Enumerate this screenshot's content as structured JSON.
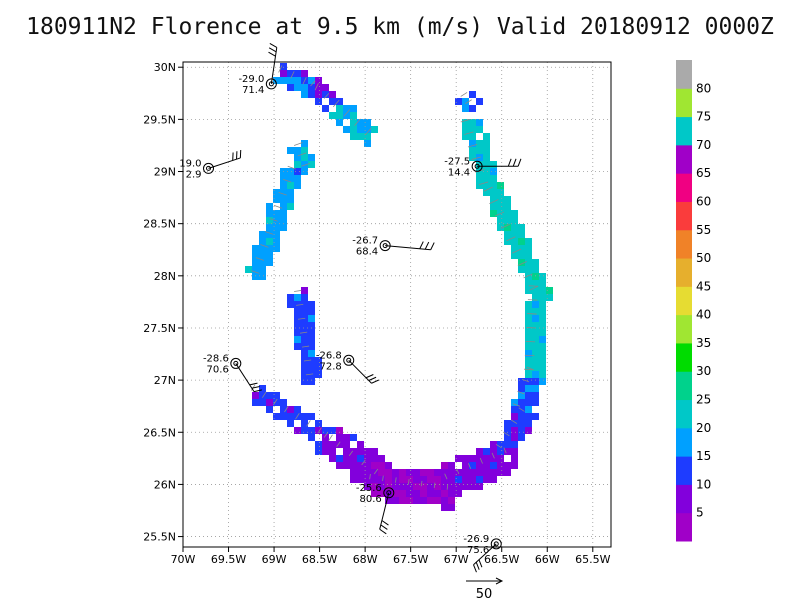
{
  "title": "180911N2 Florence at 9.5 km (m/s) Valid 20180912 0000Z",
  "chart_data": {
    "type": "heatmap",
    "title": "180911N2 Florence at 9.5 km (m/s) Valid 20180912 0000Z",
    "x_range": [
      -70.0,
      -65.3
    ],
    "y_range": [
      25.4,
      30.05
    ],
    "x_ticks": [
      {
        "v": -70.0,
        "label": "70W"
      },
      {
        "v": -69.5,
        "label": "69.5W"
      },
      {
        "v": -69.0,
        "label": "69W"
      },
      {
        "v": -68.5,
        "label": "68.5W"
      },
      {
        "v": -68.0,
        "label": "68W"
      },
      {
        "v": -67.5,
        "label": "67.5W"
      },
      {
        "v": -67.0,
        "label": "67W"
      },
      {
        "v": -66.5,
        "label": "66.5W"
      },
      {
        "v": -66.0,
        "label": "66W"
      },
      {
        "v": -65.5,
        "label": "65.5W"
      }
    ],
    "y_ticks": [
      {
        "v": 25.5,
        "label": "25.5N"
      },
      {
        "v": 26.0,
        "label": "26N"
      },
      {
        "v": 26.5,
        "label": "26.5N"
      },
      {
        "v": 27.0,
        "label": "27N"
      },
      {
        "v": 27.5,
        "label": "27.5N"
      },
      {
        "v": 28.0,
        "label": "28N"
      },
      {
        "v": 28.5,
        "label": "28.5N"
      },
      {
        "v": 29.0,
        "label": "29N"
      },
      {
        "v": 29.5,
        "label": "29.5N"
      },
      {
        "v": 30.0,
        "label": "30N"
      }
    ],
    "grid": true,
    "colorbar": {
      "placement": "right",
      "bins": [
        {
          "from": 0,
          "to": 5,
          "color": "#a000c8"
        },
        {
          "from": 5,
          "to": 10,
          "color": "#8200dc"
        },
        {
          "from": 10,
          "to": 15,
          "color": "#1e3cff"
        },
        {
          "from": 15,
          "to": 20,
          "color": "#00a0ff"
        },
        {
          "from": 20,
          "to": 25,
          "color": "#00c8c8"
        },
        {
          "from": 25,
          "to": 30,
          "color": "#00d28c"
        },
        {
          "from": 30,
          "to": 35,
          "color": "#00dc00"
        },
        {
          "from": 35,
          "to": 40,
          "color": "#a0e632"
        },
        {
          "from": 40,
          "to": 45,
          "color": "#e6dc32"
        },
        {
          "from": 45,
          "to": 50,
          "color": "#e6af2d"
        },
        {
          "from": 50,
          "to": 55,
          "color": "#f08228"
        },
        {
          "from": 55,
          "to": 60,
          "color": "#fa3c3c"
        },
        {
          "from": 60,
          "to": 65,
          "color": "#f00082"
        },
        {
          "from": 65,
          "to": 70,
          "color": "#a000c8"
        },
        {
          "from": 70,
          "to": 75,
          "color": "#00c8c8"
        },
        {
          "from": 75,
          "to": 80,
          "color": "#a0e632"
        },
        {
          "from": 80,
          "to": 85,
          "color": "#aaaaaa"
        }
      ],
      "labels": [
        5,
        10,
        15,
        20,
        25,
        30,
        35,
        40,
        45,
        50,
        55,
        60,
        65,
        70,
        75,
        80
      ]
    },
    "wind_segments": [
      {
        "lon": [
          -68.95,
          -68.55
        ],
        "lat": [
          29.95,
          29.78
        ],
        "wind": 15
      },
      {
        "lon": [
          -68.6,
          -68.45
        ],
        "lat": [
          29.82,
          29.7
        ],
        "wind": 12
      },
      {
        "lon": [
          -68.35,
          -68.0
        ],
        "lat": [
          29.62,
          29.35
        ],
        "wind": 20
      },
      {
        "lon": [
          -68.78,
          -68.7
        ],
        "lat": [
          29.25,
          29.05
        ],
        "wind": 20
      },
      {
        "lon": [
          -68.85,
          -69.25
        ],
        "lat": [
          29.05,
          28.05
        ],
        "wind": 18
      },
      {
        "lon": [
          -68.78,
          -68.65
        ],
        "lat": [
          27.85,
          27.05
        ],
        "wind": 13
      },
      {
        "lon": [
          -69.25,
          -68.4
        ],
        "lat": [
          26.9,
          26.42
        ],
        "wind": 12
      },
      {
        "lon": [
          -68.45,
          -67.9
        ],
        "lat": [
          26.45,
          26.1
        ],
        "wind": 8
      },
      {
        "lon": [
          -67.95,
          -67.1
        ],
        "lat": [
          26.05,
          25.95
        ],
        "wind": 5
      },
      {
        "lon": [
          -67.1,
          -66.45
        ],
        "lat": [
          26.05,
          26.3
        ],
        "wind": 8
      },
      {
        "lon": [
          -66.5,
          -66.25
        ],
        "lat": [
          26.35,
          26.7
        ],
        "wind": 11
      },
      {
        "lon": [
          -66.3,
          -66.15
        ],
        "lat": [
          26.75,
          27.1
        ],
        "wind": 14
      },
      {
        "lon": [
          -66.15,
          -66.1
        ],
        "lat": [
          27.1,
          27.9
        ],
        "wind": 22
      },
      {
        "lon": [
          -66.1,
          -66.6
        ],
        "lat": [
          27.9,
          28.85
        ],
        "wind": 23
      },
      {
        "lon": [
          -66.65,
          -66.85
        ],
        "lat": [
          28.9,
          29.5
        ],
        "wind": 22
      },
      {
        "lon": [
          -66.95,
          -66.9
        ],
        "lat": [
          29.72,
          29.65
        ],
        "wind": 14
      }
    ],
    "stations": [
      {
        "lon": -69.03,
        "lat": 29.84,
        "t": "-29.0",
        "rh": "71.4",
        "lab": "left",
        "barb": [
          0.06,
          -0.35
        ]
      },
      {
        "lon": -69.72,
        "lat": 29.03,
        "t": "19.0",
        "rh": "2.9",
        "lab": "left",
        "barb": [
          0.35,
          -0.1
        ]
      },
      {
        "lon": -66.77,
        "lat": 29.05,
        "t": "-27.5",
        "rh": "14.4",
        "lab": "left",
        "barb": [
          0.45,
          0.0
        ]
      },
      {
        "lon": -67.78,
        "lat": 28.29,
        "t": "-26.7",
        "rh": "68.4",
        "lab": "left",
        "barb": [
          0.5,
          0.04
        ]
      },
      {
        "lon": -68.18,
        "lat": 27.19,
        "t": "-26.8",
        "rh": "72.8",
        "lab": "left",
        "barb": [
          0.25,
          0.22
        ]
      },
      {
        "lon": -69.42,
        "lat": 27.16,
        "t": "-28.6",
        "rh": "70.6",
        "lab": "left",
        "barb": [
          0.2,
          0.27
        ]
      },
      {
        "lon": -67.74,
        "lat": 25.92,
        "t": "-25.6",
        "rh": "80.6",
        "lab": "left",
        "barb": [
          -0.1,
          0.35
        ]
      },
      {
        "lon": -66.56,
        "lat": 25.43,
        "t": "-26.9",
        "rh": "75.6",
        "lab": "left",
        "barb": [
          -0.25,
          0.2
        ]
      }
    ],
    "scale_arrow": {
      "label": "50"
    }
  }
}
